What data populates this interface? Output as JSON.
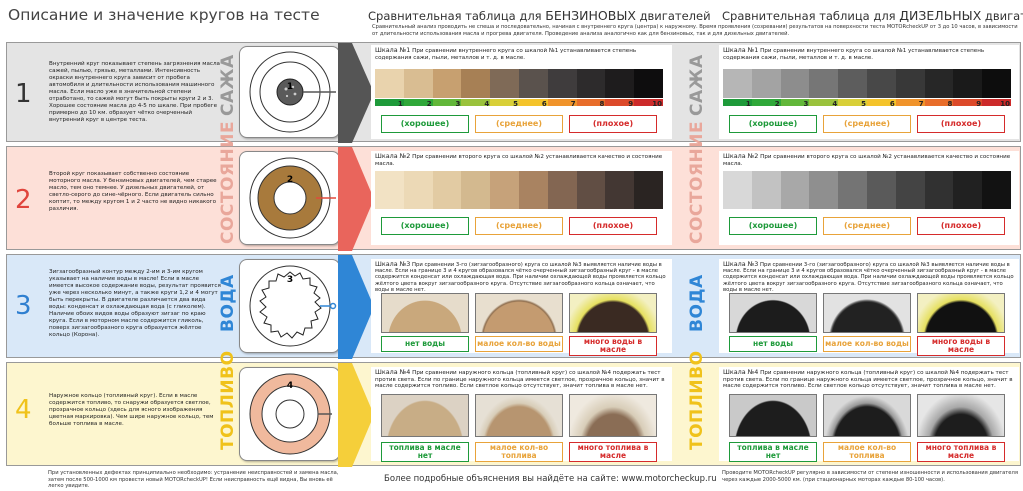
{
  "header": {
    "title": "Описание и значение кругов на тесте",
    "petrol_title_prefix": "Сравнительная таблица для",
    "petrol_title_word": "БЕНЗИНОВЫХ",
    "petrol_title_suffix": "двигателей",
    "diesel_title_prefix": "Сравнительная таблица для",
    "diesel_title_word": "ДИЗЕЛЬНЫХ",
    "diesel_title_suffix": "двигателей",
    "intro": "Сравнительный анализ проводить не спеша и последовательно, начиная с внутреннего круга (центра) к наружному. Время проявления (созревания) результатов на поверхности теста MOTORcheckUP от 3 до 10 часов, в зависимости от длительности использования масла и прогрева двигателя. Проведение анализа аналогично как для бензиновых, так и для дизельных двигателей."
  },
  "rows": [
    {
      "number": "1",
      "side_label": "САЖА",
      "description": "Внутренний круг показывает степень загрязнения масла сажей, пылью, грязью, металлами. Интенсивность окраски внутреннего круга зависит от пробега автомобиля и длительности использования машинного масла. Если масло уже в значительной степени отработано, то сажей могут быть покрыты круги 2 и 3. Хорошее состояние масла до 4-5 по шкале. При пробеге примерно до 10 км. образует чётко очерченный внутренний круг в центре теста.",
      "petrol_text_bold": "Шкала №1",
      "petrol_text": " При сравнении внутреннего круга со шкалой №1 устанавливается степень содержания сажи, пыли, металлов и т. д. в масле.",
      "diesel_text_bold": "Шкала №1",
      "diesel_text": " При сравнении внутреннего круга со шкалой №1 устанавливается степень содержания сажи, пыли, металлов и т. д. в масле.",
      "labels": [
        "(хорошее)",
        "(среднее)",
        "(плохое)"
      ],
      "scale_numbers": [
        "1",
        "2",
        "3",
        "4",
        "5",
        "6",
        "7",
        "8",
        "9",
        "10"
      ]
    },
    {
      "number": "2",
      "side_label": "СОСТОЯНИЕ",
      "description": "Второй круг показывает собственно состояние моторного масла. У бензиновых двигателей, чем старее масло, тем оно темнее. У дизельных двигателей, от светло-серого до сине-чёрного. Если двигатель сильно коптит, то между кругом 1 и 2 часто не видно никакого различия.",
      "petrol_text_bold": "Шкала №2",
      "petrol_text": " При сравнении второго круга со шкалой №2 устанавливается качество и состояние масла.",
      "diesel_text_bold": "Шкала №2",
      "diesel_text": " При сравнении второго круга со шкалой №2 устанавливается качество и состояние масла.",
      "labels": [
        "(хорошее)",
        "(среднее)",
        "(плохое)"
      ]
    },
    {
      "number": "3",
      "side_label": "ВОДА",
      "description": "Зигзагообразный контур между 2-им и 3-им кругом указывает на наличие воды в масле! Если в масле имеется высокое содержание воды, результат проявится уже через несколько минут, а также круги 1,2 и 4 могут быть перекрыты. В двигателе различается два вида воды: конденсат и охлаждающая вода (с гликолем). Наличие обоих видов воды образуют зигзаг по краю круга. Если в моторном масле содержится гликоль, поверх зигзагообразного круга образуется жёлтое кольцо (Корона).",
      "petrol_text_bold": "Шкала №3",
      "petrol_text": " При сравнении 3-го (зигзагообразного) круга со шкалой №3 выявляется наличие воды в масле. Если на границе 3 и 4 кругов образовался чётко очерченный зигзагообразный круг - в масле содержится конденсат или охлаждающая вода. При наличии охлаждающей воды проявляется кольцо жёлтого цвета вокруг зигзагообразного круга. Отсутствие зигзагообразного кольца означает, что воды в масле нет.",
      "diesel_text_bold": "Шкала №3",
      "diesel_text": " При сравнении 3-го (зигзагообразного) круга со шкалой №3 выявляется наличие воды в масле. Если на границе 3 и 4 кругов образовался чётко очерченный зигзагообразный круг - в масле содержится конденсат или охлаждающая вода. При наличии охлаждающей воды проявляется кольцо жёлтого цвета вокруг зигзагообразного круга. Отсутствие зигзагообразного кольца означает, что воды в масле нет.",
      "labels": [
        "нет воды",
        "малое кол-во воды",
        "много воды в масле"
      ]
    },
    {
      "number": "4",
      "side_label": "ТОПЛИВО",
      "description": "Наружное кольцо (топливный круг). Если в масле содержится топливо, то снаружи образуется светлое, прозрачное кольцо (здесь для ясного изображения цветная маркировка). Чем шире наружное кольцо, тем больше топлива в масле.",
      "petrol_text_bold": "Шкала №4",
      "petrol_text": " При сравнении наружного кольца (топливный круг) со шкалой №4 подержать тест против света. Если по границе наружного кольца имеется светлое, прозрачное кольцо, значит в масле содержится топливо. Если светлое кольцо отсутствует, значит топлива в масле нет.",
      "diesel_text_bold": "Шкала №4",
      "diesel_text": " При сравнении наружного кольца (топливный круг) со шкалой №4 подержать тест против света. Если по границе наружного кольца имеется светлое, прозрачное кольцо, значит в масле содержится топливо. Если светлое кольцо отсутствует, значит топлива в масле нет.",
      "labels": [
        "топлива в масле нет",
        "малое кол-во топлива",
        "много топлива в масле"
      ]
    }
  ],
  "footer": {
    "left": "При установленных дефектах принципиально необходимо: устранение неисправностей и замена масла, затем после 500-1000 км провести новый MOTORcheckUP! Если неисправность ещё видна, Вы вновь её легко увидите.",
    "center": "Более подробные объяснения вы найдёте на сайте: www.motorcheckup.ru",
    "right": "Проводите MOTORcheckUP регулярно в зависимости от степени изношенности и использования двигателя через каждые 2000-5000 км. (при стационарных моторах каждые 80-100 часов)."
  },
  "colors": {
    "row1_bg": "#e4e4e4",
    "row2_bg": "#fde0d8",
    "row3_bg": "#d9e8f8",
    "row4_bg": "#fdf6cf",
    "good": "#1e9a3a",
    "medium": "#e8a33a",
    "bad": "#d52b2b"
  }
}
